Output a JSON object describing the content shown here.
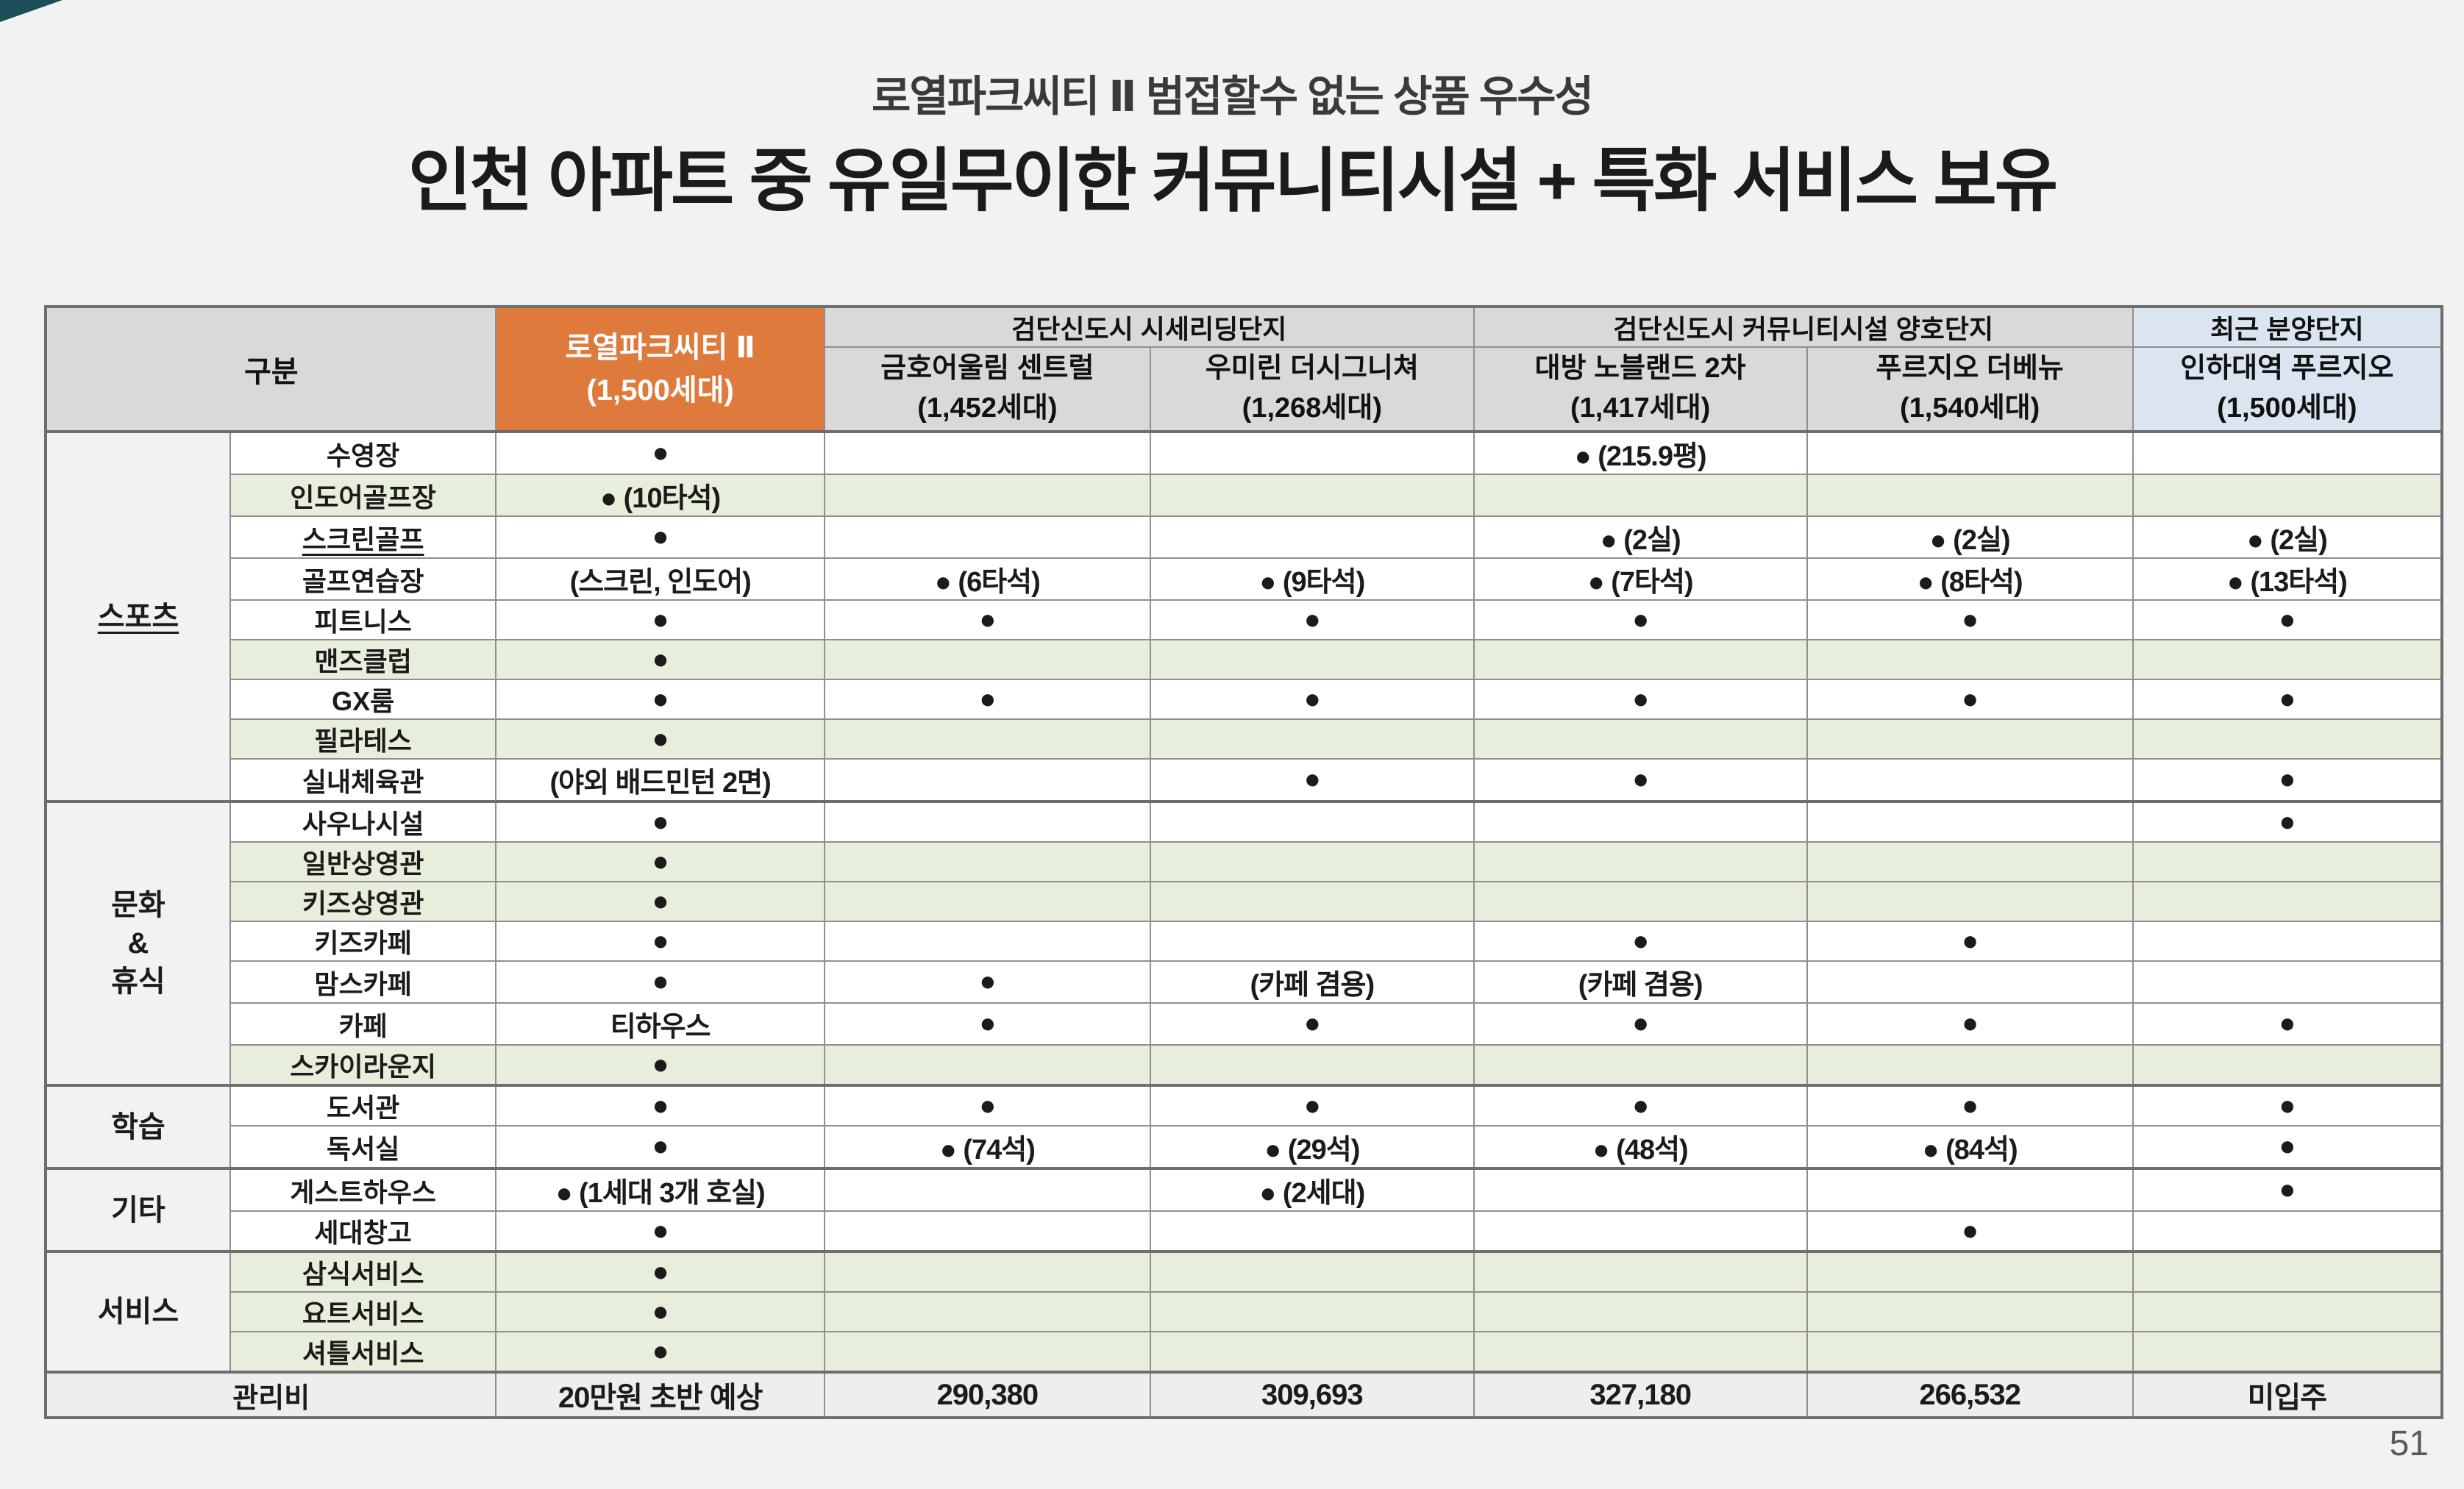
{
  "page": {
    "subtitle": "로열파크씨티 Ⅱ 범접할수 없는 상품 우수성",
    "title": "인천 아파트 중 유일무이한 커뮤니티시설 + 특화 서비스 보유",
    "page_number": "51"
  },
  "colors": {
    "accent_orange": "#dd7a3c",
    "header_gray": "#d9d9d9",
    "highlight_green": "#e7efdc",
    "highlight_blue": "#dbe5f1",
    "corner_teal": "#1c4f58",
    "background": "#f1f2f2"
  },
  "table": {
    "corner_header": "구분",
    "primary_column": {
      "name": "로열파크씨티 Ⅱ",
      "units": "(1,500세대)"
    },
    "groups": [
      {
        "label": "검단신도시 시세리딩단지",
        "columns": [
          {
            "name": "금호어울림 센트럴",
            "units": "(1,452세대)"
          },
          {
            "name": "우미린 더시그니쳐",
            "units": "(1,268세대)"
          }
        ]
      },
      {
        "label": "검단신도시 커뮤니티시설 양호단지",
        "columns": [
          {
            "name": "대방 노블랜드 2차",
            "units": "(1,417세대)"
          },
          {
            "name": "푸르지오 더베뉴",
            "units": "(1,540세대)"
          }
        ]
      },
      {
        "label": "최근 분양단지",
        "highlight": "blue",
        "columns": [
          {
            "name": "인하대역 푸르지오",
            "units": "(1,500세대)"
          }
        ]
      }
    ],
    "sections": [
      {
        "category": "스포츠",
        "category_underline": true,
        "rows": [
          {
            "label": "수영장",
            "green": false,
            "underline": false,
            "cells": [
              "●",
              "",
              "",
              "● (215.9평)",
              "",
              ""
            ]
          },
          {
            "label": "인도어골프장",
            "green": true,
            "underline": false,
            "cells": [
              "● (10타석)",
              "",
              "",
              "",
              "",
              ""
            ]
          },
          {
            "label": "스크린골프",
            "green": false,
            "underline": true,
            "cells": [
              "●",
              "",
              "",
              "● (2실)",
              "● (2실)",
              "● (2실)"
            ]
          },
          {
            "label": "골프연습장",
            "green": false,
            "underline": false,
            "cells": [
              "(스크린, 인도어)",
              "● (6타석)",
              "● (9타석)",
              "● (7타석)",
              "● (8타석)",
              "● (13타석)"
            ]
          },
          {
            "label": "피트니스",
            "green": false,
            "underline": false,
            "cells": [
              "●",
              "●",
              "●",
              "●",
              "●",
              "●"
            ]
          },
          {
            "label": "맨즈클럽",
            "green": true,
            "underline": false,
            "cells": [
              "●",
              "",
              "",
              "",
              "",
              ""
            ]
          },
          {
            "label": "GX룸",
            "green": false,
            "underline": false,
            "cells": [
              "●",
              "●",
              "●",
              "●",
              "●",
              "●"
            ]
          },
          {
            "label": "필라테스",
            "green": true,
            "underline": false,
            "cells": [
              "●",
              "",
              "",
              "",
              "",
              ""
            ]
          },
          {
            "label": "실내체육관",
            "green": false,
            "underline": false,
            "cells": [
              "(야외 배드민턴 2면)",
              "",
              "●",
              "●",
              "",
              "●"
            ]
          }
        ]
      },
      {
        "category": "문화\n&\n휴식",
        "category_underline": false,
        "rows": [
          {
            "label": "사우나시설",
            "green": false,
            "underline": false,
            "cells": [
              "●",
              "",
              "",
              "",
              "",
              "●"
            ]
          },
          {
            "label": "일반상영관",
            "green": true,
            "underline": false,
            "cells": [
              "●",
              "",
              "",
              "",
              "",
              ""
            ]
          },
          {
            "label": "키즈상영관",
            "green": true,
            "underline": false,
            "cells": [
              "●",
              "",
              "",
              "",
              "",
              ""
            ]
          },
          {
            "label": "키즈카페",
            "green": false,
            "underline": false,
            "cells": [
              "●",
              "",
              "",
              "●",
              "●",
              ""
            ]
          },
          {
            "label": "맘스카페",
            "green": false,
            "underline": false,
            "cells": [
              "●",
              "●",
              "(카페 겸용)",
              "(카페 겸용)",
              "",
              ""
            ]
          },
          {
            "label": "카페",
            "green": false,
            "underline": false,
            "cells": [
              "티하우스",
              "●",
              "●",
              "●",
              "●",
              "●"
            ]
          },
          {
            "label": "스카이라운지",
            "green": true,
            "underline": false,
            "cells": [
              "●",
              "",
              "",
              "",
              "",
              ""
            ]
          }
        ]
      },
      {
        "category": "학습",
        "category_underline": false,
        "rows": [
          {
            "label": "도서관",
            "green": false,
            "underline": false,
            "cells": [
              "●",
              "●",
              "●",
              "●",
              "●",
              "●"
            ]
          },
          {
            "label": "독서실",
            "green": false,
            "underline": false,
            "cells": [
              "●",
              "● (74석)",
              "● (29석)",
              "● (48석)",
              "● (84석)",
              "●"
            ]
          }
        ]
      },
      {
        "category": "기타",
        "category_underline": false,
        "rows": [
          {
            "label": "게스트하우스",
            "green": false,
            "underline": false,
            "cells": [
              "● (1세대 3개 호실)",
              "",
              "● (2세대)",
              "",
              "",
              "●"
            ]
          },
          {
            "label": "세대창고",
            "green": false,
            "underline": false,
            "cells": [
              "●",
              "",
              "",
              "",
              "●",
              ""
            ]
          }
        ]
      },
      {
        "category": "서비스",
        "category_underline": false,
        "rows": [
          {
            "label": "삼식서비스",
            "green": true,
            "underline": false,
            "cells": [
              "●",
              "",
              "",
              "",
              "",
              ""
            ]
          },
          {
            "label": "요트서비스",
            "green": true,
            "underline": false,
            "cells": [
              "●",
              "",
              "",
              "",
              "",
              ""
            ]
          },
          {
            "label": "셔틀서비스",
            "green": true,
            "underline": false,
            "cells": [
              "●",
              "",
              "",
              "",
              "",
              ""
            ]
          }
        ]
      }
    ],
    "fee_row": {
      "label": "관리비",
      "values": [
        "20만원 초반 예상",
        "290,380",
        "309,693",
        "327,180",
        "266,532",
        "미입주"
      ]
    }
  }
}
